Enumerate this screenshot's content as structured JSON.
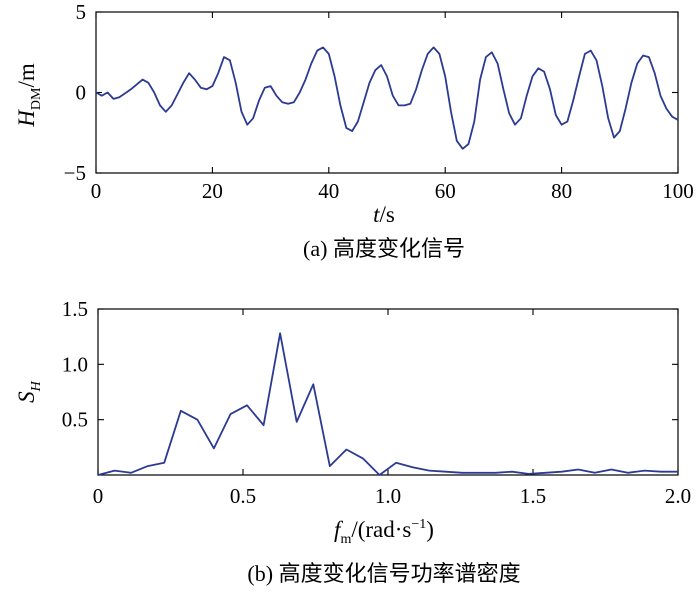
{
  "chart_data": [
    {
      "type": "line",
      "xlim": [
        0,
        100
      ],
      "ylim": [
        -5,
        5
      ],
      "xticks": [
        0,
        20,
        40,
        60,
        80,
        100
      ],
      "yticks": [
        -5,
        0,
        5
      ],
      "xlabel_symbol": "t",
      "xlabel_unit": "/s",
      "ylabel_symbol": "H",
      "ylabel_subscript": "DM",
      "ylabel_unit": "/m",
      "caption": "(a) 高度变化信号",
      "color": "#2b3a92",
      "grid": false,
      "series": [
        {
          "x": [
            0,
            1,
            2,
            3,
            4,
            6,
            8,
            9,
            10,
            11,
            12,
            13,
            14,
            15,
            16,
            17,
            18,
            19,
            20,
            21,
            22,
            23,
            24,
            25,
            26,
            27,
            28,
            29,
            30,
            31,
            32,
            33,
            34,
            35,
            36,
            37,
            38,
            39,
            40,
            41,
            42,
            43,
            44,
            45,
            46,
            47,
            48,
            49,
            50,
            51,
            52,
            53,
            54,
            55,
            56,
            57,
            58,
            59,
            60,
            61,
            62,
            63,
            64,
            65,
            66,
            67,
            68,
            69,
            70,
            71,
            72,
            73,
            74,
            75,
            76,
            77,
            78,
            79,
            80,
            81,
            82,
            83,
            84,
            85,
            86,
            87,
            88,
            89,
            90,
            91,
            92,
            93,
            94,
            95,
            96,
            97,
            98,
            99,
            100
          ],
          "y": [
            0.0,
            -0.2,
            0.0,
            -0.4,
            -0.3,
            0.2,
            0.8,
            0.6,
            0.0,
            -0.8,
            -1.2,
            -0.8,
            -0.1,
            0.6,
            1.2,
            0.8,
            0.3,
            0.2,
            0.4,
            1.2,
            2.2,
            2.0,
            0.6,
            -1.2,
            -2.0,
            -1.6,
            -0.5,
            0.3,
            0.4,
            -0.2,
            -0.6,
            -0.7,
            -0.6,
            0.0,
            0.8,
            1.8,
            2.6,
            2.8,
            2.4,
            1.0,
            -0.8,
            -2.2,
            -2.4,
            -1.8,
            -0.6,
            0.6,
            1.4,
            1.7,
            1.0,
            -0.2,
            -0.8,
            -0.8,
            -0.7,
            0.2,
            1.4,
            2.4,
            2.8,
            2.4,
            1.0,
            -1.2,
            -3.0,
            -3.5,
            -3.2,
            -1.8,
            0.8,
            2.2,
            2.5,
            1.8,
            0.2,
            -1.3,
            -2.0,
            -1.6,
            -0.2,
            1.0,
            1.5,
            1.3,
            0.2,
            -1.4,
            -2.0,
            -1.8,
            -0.5,
            1.0,
            2.4,
            2.6,
            2.0,
            0.4,
            -1.6,
            -2.8,
            -2.4,
            -1.0,
            0.6,
            1.8,
            2.3,
            2.2,
            1.2,
            -0.2,
            -1.0,
            -1.5,
            -1.7
          ]
        }
      ]
    },
    {
      "type": "line",
      "xlim": [
        0,
        2.0
      ],
      "ylim": [
        0,
        1.5
      ],
      "xticks": [
        0,
        0.5,
        1.0,
        1.5,
        2.0
      ],
      "xtick_labels": [
        "0",
        "0.5",
        "1.0",
        "1.5",
        "2.0"
      ],
      "yticks": [
        0.5,
        1.0,
        1.5
      ],
      "ytick_labels": [
        "0.5",
        "1.0",
        "1.5"
      ],
      "xlabel_symbol": "f",
      "xlabel_subscript": "m",
      "xlabel_unit": "/(rad·s",
      "xlabel_exponent": "−1",
      "xlabel_close": ")",
      "ylabel_symbol": "S",
      "ylabel_subscript": "H",
      "caption": "(b) 高度变化信号功率谱密度",
      "color": "#2b3a92",
      "grid": false,
      "series": [
        {
          "x": [
            0.0,
            0.0571,
            0.1142,
            0.1713,
            0.2284,
            0.2855,
            0.3426,
            0.3997,
            0.4568,
            0.5139,
            0.571,
            0.6281,
            0.6852,
            0.7423,
            0.7994,
            0.8565,
            0.9136,
            0.9707,
            1.0278,
            1.0849,
            1.142,
            1.1991,
            1.2562,
            1.3133,
            1.3704,
            1.4275,
            1.4846,
            1.5417,
            1.5988,
            1.6559,
            1.713,
            1.7701,
            1.8272,
            1.8843,
            1.9414,
            2.0
          ],
          "y": [
            0.0,
            0.04,
            0.02,
            0.08,
            0.11,
            0.58,
            0.5,
            0.24,
            0.55,
            0.63,
            0.45,
            1.28,
            0.48,
            0.82,
            0.08,
            0.23,
            0.15,
            0.0,
            0.11,
            0.07,
            0.04,
            0.03,
            0.02,
            0.02,
            0.02,
            0.03,
            0.01,
            0.02,
            0.03,
            0.05,
            0.02,
            0.05,
            0.02,
            0.04,
            0.03,
            0.03
          ]
        }
      ]
    }
  ]
}
